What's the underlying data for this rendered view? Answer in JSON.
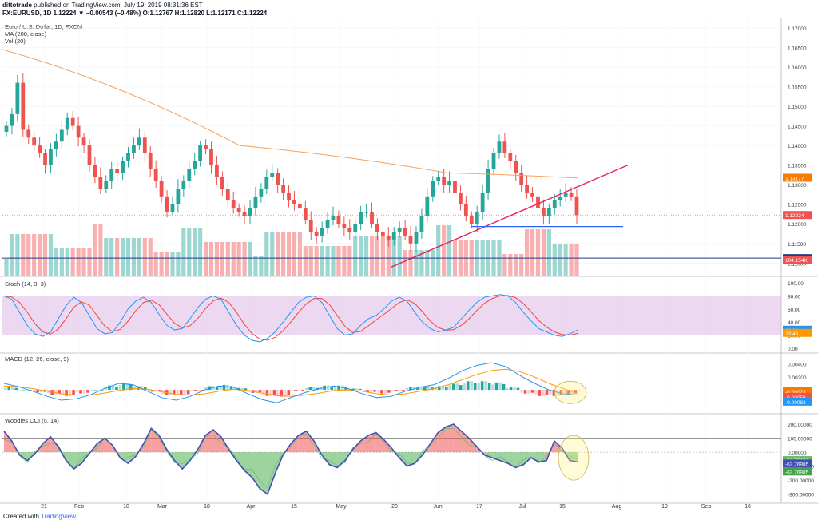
{
  "header": {
    "author": "dittotrade",
    "published_text": "published on TradingView.com, July 19, 2019 08:31:36 EST",
    "symbol_line": "FX:EURUSD, 1D 1.12224 ▼ −0.00543 (−0.48%) O:1.12767 H:1.12820 L:1.12171 C:1.12224"
  },
  "labels": {
    "main_title": "Euro / U.S. Dollar, 1D, FXCM",
    "ma": "MA (200, close)",
    "vol": "Vol (20)",
    "stoch": "Stoch (14, 3, 3)",
    "macd": "MACD (12, 26, close, 9)",
    "cci": "Woodies CCI (6, 14)"
  },
  "footer": {
    "prefix": "Created with",
    "brand": "TradingView"
  },
  "colors": {
    "up": "#26a69a",
    "down": "#ef5350",
    "ma": "#f5a25d",
    "trend_pink": "#e91e63",
    "support_blue": "#2962ff",
    "stoch_fill": "#e1bee7",
    "stoch_k": "#2196f3",
    "stoch_d": "#f44336",
    "macd_line": "#2196f3",
    "signal_line": "#ff9800",
    "cci_line": "#3f51b5",
    "cci_turbo": "#66bb6a"
  },
  "chart_data": [
    {
      "type": "candlestick",
      "title": "Euro / U.S. Dollar, 1D, FXCM",
      "price_axis": [
        "1.17000",
        "1.16500",
        "1.16000",
        "1.15500",
        "1.15000",
        "1.14500",
        "1.14000",
        "1.13500",
        "1.13000",
        "1.12500",
        "1.12000",
        "1.11500",
        "1.11000"
      ],
      "date_axis": [
        "21",
        "Feb",
        "18",
        "Mar",
        "18",
        "Apr",
        "15",
        "May",
        "20",
        "Jun",
        "17",
        "Jul",
        "15",
        "Aug",
        "19",
        "Sep",
        "16"
      ],
      "ylim": [
        1.107,
        1.171
      ],
      "close_path": [
        1.145,
        1.148,
        1.156,
        1.144,
        1.142,
        1.14,
        1.138,
        1.135,
        1.139,
        1.141,
        1.144,
        1.147,
        1.145,
        1.142,
        1.14,
        1.135,
        1.132,
        1.129,
        1.131,
        1.134,
        1.133,
        1.136,
        1.138,
        1.14,
        1.142,
        1.138,
        1.134,
        1.131,
        1.127,
        1.123,
        1.125,
        1.129,
        1.131,
        1.134,
        1.136,
        1.14,
        1.139,
        1.135,
        1.132,
        1.129,
        1.126,
        1.124,
        1.123,
        1.122,
        1.124,
        1.127,
        1.129,
        1.132,
        1.133,
        1.13,
        1.128,
        1.126,
        1.125,
        1.124,
        1.121,
        1.118,
        1.117,
        1.119,
        1.121,
        1.122,
        1.12,
        1.119,
        1.118,
        1.12,
        1.123,
        1.123,
        1.12,
        1.118,
        1.117,
        1.116,
        1.118,
        1.119,
        1.117,
        1.115,
        1.118,
        1.122,
        1.127,
        1.131,
        1.132,
        1.13,
        1.131,
        1.128,
        1.125,
        1.122,
        1.12,
        1.123,
        1.128,
        1.134,
        1.138,
        1.141,
        1.138,
        1.136,
        1.133,
        1.13,
        1.128,
        1.127,
        1.124,
        1.122,
        1.124,
        1.126,
        1.127,
        1.128,
        1.127,
        1.1222
      ],
      "last_price": "1.12224",
      "ma_price": "1.13177",
      "volume_label": "104.154K",
      "support_level": "1.11125",
      "ma_200": [
        1.1645,
        1.14,
        1.133,
        1.1317
      ],
      "trendline": [
        [
          1.109
        ],
        [
          1.135
        ]
      ],
      "support_line": 1.1193
    },
    {
      "type": "line",
      "title": "Stoch (14, 3, 3)",
      "axis": [
        "100.00",
        "80.00",
        "60.00",
        "40.00",
        "20.00",
        "0.00"
      ],
      "ylim": [
        0,
        100
      ],
      "band": [
        20,
        80
      ],
      "k_label": "28.31",
      "d_label": "23.46",
      "k": [
        80,
        75,
        55,
        35,
        22,
        18,
        25,
        45,
        65,
        78,
        70,
        50,
        30,
        22,
        24,
        40,
        60,
        72,
        78,
        70,
        52,
        35,
        28,
        30,
        45,
        62,
        75,
        80,
        75,
        55,
        35,
        20,
        12,
        10,
        15,
        25,
        40,
        55,
        70,
        78,
        80,
        70,
        50,
        30,
        20,
        22,
        35,
        45,
        50,
        60,
        72,
        78,
        72,
        55,
        40,
        30,
        25,
        28,
        32,
        45,
        58,
        70,
        78,
        80,
        82,
        80,
        70,
        55,
        42,
        30,
        25,
        20,
        18,
        22,
        28
      ]
    },
    {
      "type": "line",
      "title": "MACD (12, 26, close, 9)",
      "axis": [
        "0.00400",
        "0.00200",
        "0.00000",
        "-0.00200"
      ],
      "ylim": [
        -0.0032,
        0.0052
      ],
      "labels": [
        "-0.00023",
        "-0.00059",
        "-0.00083"
      ],
      "macd": [
        0.001,
        0.0005,
        -0.0002,
        -0.001,
        -0.0016,
        -0.0014,
        -0.0008,
        0.0002,
        0.001,
        0.0008,
        -0.0002,
        -0.0012,
        -0.0016,
        -0.001,
        0.0,
        0.0006,
        0.0004,
        -0.0006,
        -0.0015,
        -0.002,
        -0.0012,
        -0.0004,
        0.0002,
        0.0006,
        0.0002,
        -0.0006,
        -0.0012,
        -0.001,
        -0.0002,
        0.0004,
        0.0008,
        0.0018,
        0.003,
        0.0038,
        0.0042,
        0.0036,
        0.0022,
        0.001,
        0.0,
        -0.0006,
        -0.0008
      ],
      "signal": [
        0.0006,
        0.0005,
        0.0002,
        -0.0002,
        -0.0006,
        -0.0008,
        -0.0008,
        -0.0005,
        -0.0001,
        0.0002,
        0.0001,
        -0.0003,
        -0.0007,
        -0.0008,
        -0.0006,
        -0.0002,
        0.0001,
        -0.0001,
        -0.0005,
        -0.0009,
        -0.001,
        -0.0008,
        -0.0005,
        -0.0001,
        0.0,
        -0.0002,
        -0.0006,
        -0.0008,
        -0.0006,
        -0.0002,
        0.0002,
        0.0008,
        0.0016,
        0.0024,
        0.003,
        0.0032,
        0.0028,
        0.002,
        0.001,
        0.0002,
        -0.0006
      ]
    },
    {
      "type": "area",
      "title": "Woodies CCI (6, 14)",
      "axis": [
        "200.00000",
        "100.00000",
        "0.00000",
        "-100.00000",
        "-200.00000",
        "-300.00000"
      ],
      "ylim": [
        -330,
        240
      ],
      "labels": [
        "-56.75676",
        "-63.76985",
        "-63.76985"
      ],
      "cci": [
        150,
        80,
        -20,
        -60,
        -10,
        60,
        110,
        40,
        -60,
        -120,
        -80,
        -10,
        60,
        100,
        50,
        -40,
        -80,
        -30,
        60,
        170,
        120,
        20,
        -60,
        -120,
        -60,
        20,
        120,
        160,
        110,
        20,
        -60,
        -130,
        -180,
        -260,
        -300,
        -150,
        -20,
        60,
        120,
        150,
        80,
        -20,
        -90,
        -110,
        -60,
        20,
        80,
        120,
        140,
        90,
        30,
        -40,
        -100,
        -80,
        -20,
        60,
        140,
        180,
        200,
        150,
        100,
        40,
        -20,
        -40,
        -60,
        -80,
        -110,
        -90,
        -40,
        -70,
        -60,
        80,
        30,
        -60,
        -70
      ]
    }
  ]
}
